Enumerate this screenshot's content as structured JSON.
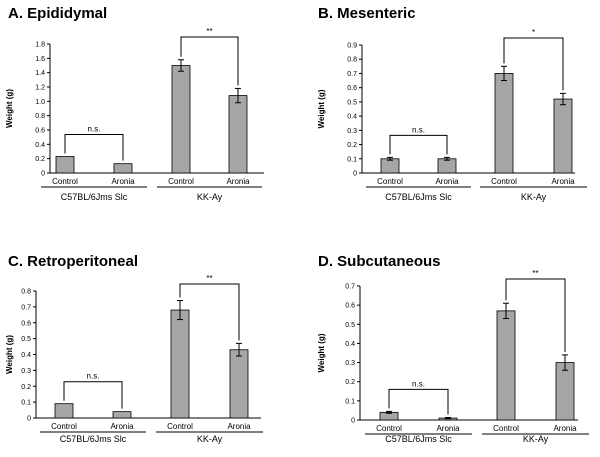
{
  "chart_data": [
    {
      "type": "bar",
      "title": "A. Epididymal",
      "ylabel": "Weight (g)",
      "ylim": [
        0,
        1.8
      ],
      "yticks": [
        "0",
        "0.2",
        "0.4",
        "0.6",
        "0.8",
        "1.0",
        "1.2",
        "1.4",
        "1.6",
        "1.8"
      ],
      "categories": [
        "Control",
        "Aronia",
        "Control",
        "Aronia"
      ],
      "groups": [
        "C57BL/6Jms Slc",
        "KK-Ay"
      ],
      "values": [
        0.23,
        0.13,
        1.5,
        1.08
      ],
      "errors": [
        0,
        0,
        0.08,
        0.1
      ],
      "comparisons": [
        "n.s.",
        "**"
      ]
    },
    {
      "type": "bar",
      "title": "B. Mesenteric",
      "ylabel": "Weight (g)",
      "ylim": [
        0,
        0.9
      ],
      "yticks": [
        "0",
        "0.1",
        "0.2",
        "0.3",
        "0.4",
        "0.5",
        "0.6",
        "0.7",
        "0.8",
        "0.9"
      ],
      "categories": [
        "Control",
        "Aronia",
        "Control",
        "Aronia"
      ],
      "groups": [
        "C57BL/6Jms Slc",
        "KK-Ay"
      ],
      "values": [
        0.1,
        0.1,
        0.7,
        0.52
      ],
      "errors": [
        0.01,
        0.01,
        0.05,
        0.04
      ],
      "comparisons": [
        "n.s.",
        "*"
      ]
    },
    {
      "type": "bar",
      "title": "C. Retroperitoneal",
      "ylabel": "Weight (g)",
      "ylim": [
        0,
        0.8
      ],
      "yticks": [
        "0",
        "0.1",
        "0.2",
        "0.3",
        "0.4",
        "0.5",
        "0.6",
        "0.7",
        "0.8"
      ],
      "categories": [
        "Control",
        "Aronia",
        "Control",
        "Aronia"
      ],
      "groups": [
        "C57BL/6Jms Slc",
        "KK-Ay"
      ],
      "values": [
        0.09,
        0.04,
        0.68,
        0.43
      ],
      "errors": [
        0,
        0,
        0.06,
        0.04
      ],
      "comparisons": [
        "n.s.",
        "**"
      ]
    },
    {
      "type": "bar",
      "title": "D. Subcutaneous",
      "ylabel": "Weight (g)",
      "ylim": [
        0,
        0.7
      ],
      "yticks": [
        "0",
        "0.1",
        "0.2",
        "0.3",
        "0.4",
        "0.5",
        "0.6",
        "0.7"
      ],
      "categories": [
        "Control",
        "Aronia",
        "Control",
        "Aronia"
      ],
      "groups": [
        "C57BL/6Jms Slc",
        "KK-Ay"
      ],
      "values": [
        0.04,
        0.01,
        0.57,
        0.3
      ],
      "errors": [
        0.005,
        0.003,
        0.04,
        0.04
      ],
      "comparisons": [
        "n.s.",
        "**"
      ]
    }
  ],
  "colors": {
    "bar_fill": "#a6a6a6",
    "bar_stroke": "#000000",
    "axis": "#000000"
  }
}
